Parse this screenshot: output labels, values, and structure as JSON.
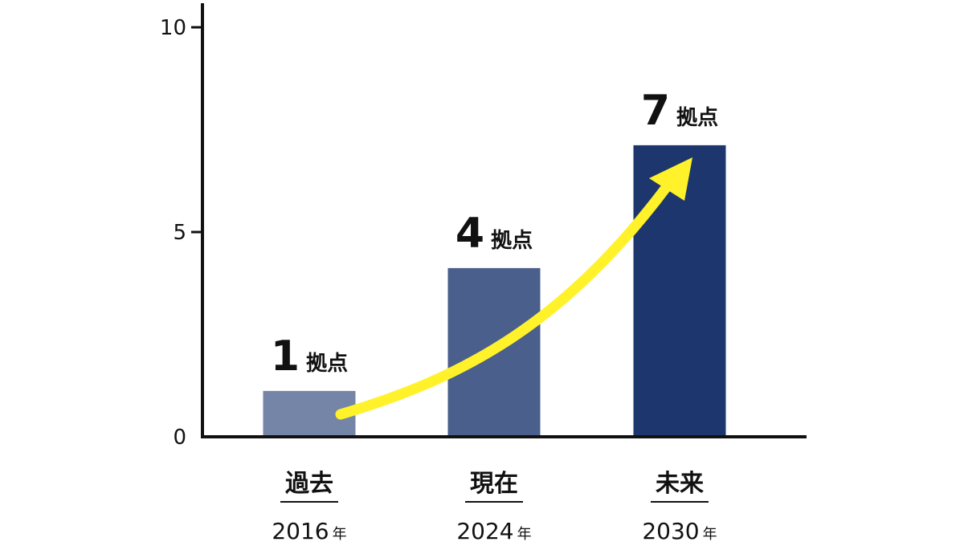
{
  "chart_data": {
    "type": "bar",
    "categories": [
      "過去",
      "現在",
      "未来"
    ],
    "years": [
      "2016",
      "2024",
      "2030"
    ],
    "year_unit": "年",
    "values": [
      1,
      4,
      7
    ],
    "value_label_unit": "拠点",
    "ylim": [
      0,
      10
    ],
    "yticks": [
      0,
      5,
      10
    ],
    "colors": {
      "bars": [
        "#7585A8",
        "#4A5F8C",
        "#1D376E"
      ],
      "arrow": "#FFF22A",
      "axis": "#111111"
    },
    "annotations": [
      "growth-arrow"
    ],
    "grid": false,
    "legend": "none"
  }
}
